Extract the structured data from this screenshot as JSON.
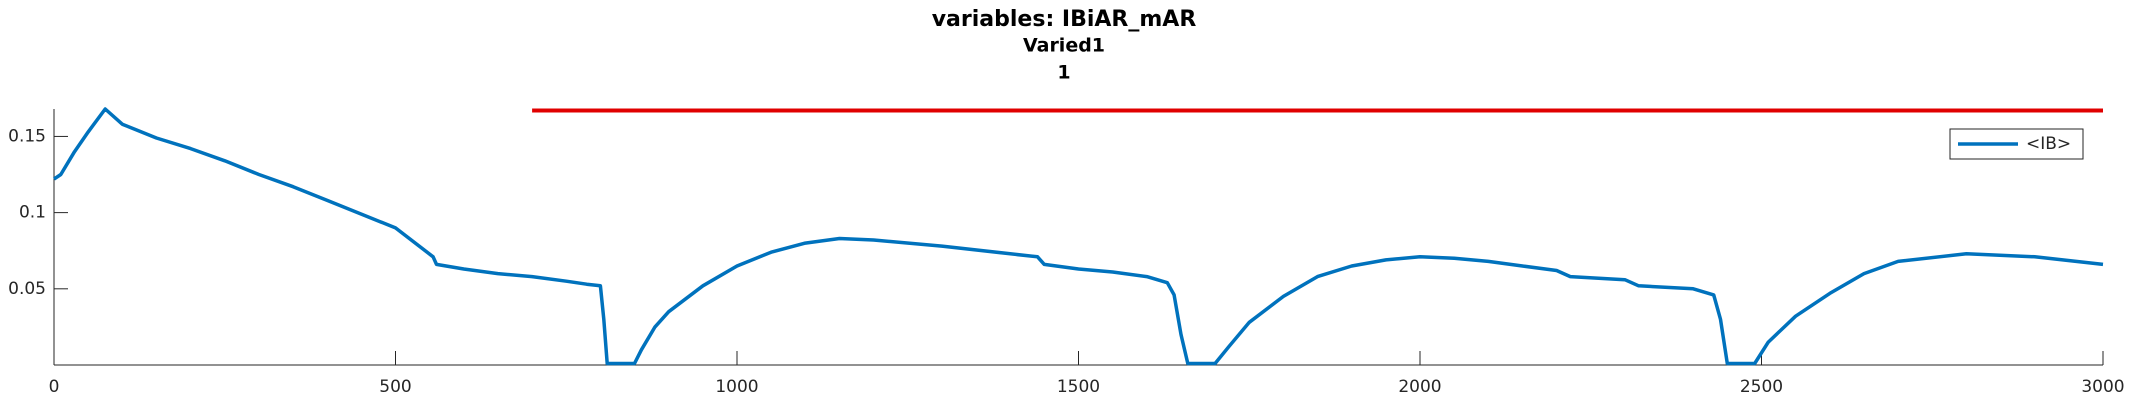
{
  "chart_data": {
    "type": "line",
    "title": "variables: IBiAR_mAR",
    "subtitle": "Varied1",
    "subtitle2": "1",
    "xlim": [
      0,
      3000
    ],
    "xticks": [
      0,
      500,
      1000,
      1500,
      2000,
      2500,
      3000
    ],
    "ylim": [
      0,
      0.168
    ],
    "yticks": [
      0.05,
      0.1,
      0.15
    ],
    "legend": "upper right",
    "series": [
      {
        "name": "<IB>",
        "color": "#0072bd",
        "x": [
          0,
          10,
          30,
          50,
          75,
          100,
          150,
          200,
          250,
          300,
          350,
          400,
          450,
          500,
          555,
          560,
          600,
          650,
          700,
          750,
          780,
          800,
          805,
          810,
          850,
          860,
          880,
          900,
          950,
          1000,
          1050,
          1100,
          1150,
          1200,
          1300,
          1400,
          1440,
          1450,
          1500,
          1550,
          1600,
          1630,
          1640,
          1650,
          1660,
          1700,
          1720,
          1750,
          1800,
          1850,
          1900,
          1950,
          2000,
          2050,
          2100,
          2150,
          2200,
          2220,
          2300,
          2320,
          2400,
          2430,
          2440,
          2450,
          2490,
          2510,
          2550,
          2600,
          2650,
          2700,
          2800,
          2900,
          3000
        ],
        "values": [
          0.122,
          0.125,
          0.14,
          0.153,
          0.168,
          0.158,
          0.149,
          0.142,
          0.134,
          0.125,
          0.117,
          0.108,
          0.099,
          0.09,
          0.071,
          0.066,
          0.063,
          0.06,
          0.058,
          0.055,
          0.053,
          0.052,
          0.03,
          0.001,
          0.001,
          0.01,
          0.025,
          0.035,
          0.052,
          0.065,
          0.074,
          0.08,
          0.083,
          0.082,
          0.078,
          0.073,
          0.071,
          0.066,
          0.063,
          0.061,
          0.058,
          0.054,
          0.046,
          0.02,
          0.001,
          0.001,
          0.012,
          0.028,
          0.045,
          0.058,
          0.065,
          0.069,
          0.071,
          0.07,
          0.068,
          0.065,
          0.062,
          0.058,
          0.056,
          0.052,
          0.05,
          0.046,
          0.03,
          0.001,
          0.001,
          0.015,
          0.032,
          0.047,
          0.06,
          0.068,
          0.073,
          0.071,
          0.066
        ]
      }
    ],
    "reference_line": {
      "color": "#e00000",
      "x": [
        700,
        3000
      ],
      "values": [
        0.167,
        0.167
      ]
    }
  }
}
